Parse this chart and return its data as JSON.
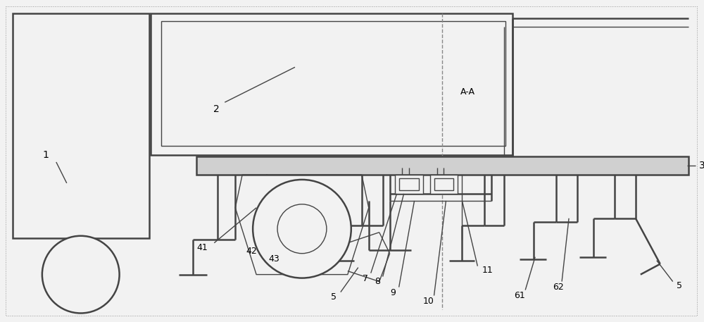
{
  "bg": "#f2f2f2",
  "lc": "#444444",
  "lw": 1.0,
  "lw2": 1.8,
  "fig_w": 10.0,
  "fig_h": 4.57,
  "dpi": 100
}
